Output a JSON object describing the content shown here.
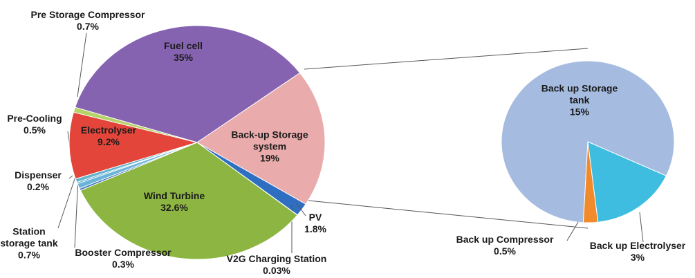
{
  "chart_data": [
    {
      "type": "pie",
      "categories": [
        "Fuel cell",
        "Back-up Storage system",
        "PV",
        "V2G Charging Station",
        "Wind Turbine",
        "Booster Compressor",
        "Station storage tank",
        "Dispenser",
        "Pre-Cooling",
        "Electrolyser",
        "Pre Storage Compressor"
      ],
      "values": [
        35,
        19,
        1.8,
        0.03,
        32.6,
        0.3,
        0.7,
        0.2,
        0.5,
        9.2,
        0.7
      ],
      "value_labels": [
        "35%",
        "19%",
        "1.8%",
        "0.03%",
        "32.6%",
        "0.3%",
        "0.7%",
        "0.2%",
        "0.5%",
        "9.2%",
        "0.7%"
      ],
      "colors": [
        "#8563b0",
        "#e9abab",
        "#2f6fc2",
        "#8fa6c8",
        "#8db541",
        "#4a7ec2",
        "#6ab4da",
        "#3a9fc2",
        "#63b3cc",
        "#e3453a",
        "#b5d366"
      ]
    },
    {
      "type": "pie",
      "categories": [
        "Back up Storage tank",
        "Back up Electrolyser",
        "Back up Compressor"
      ],
      "values": [
        15,
        3,
        0.5
      ],
      "value_labels": [
        "15%",
        "3%",
        "0.5%"
      ],
      "colors": [
        "#a5bce0",
        "#3ebde0",
        "#f08a2a"
      ]
    }
  ]
}
